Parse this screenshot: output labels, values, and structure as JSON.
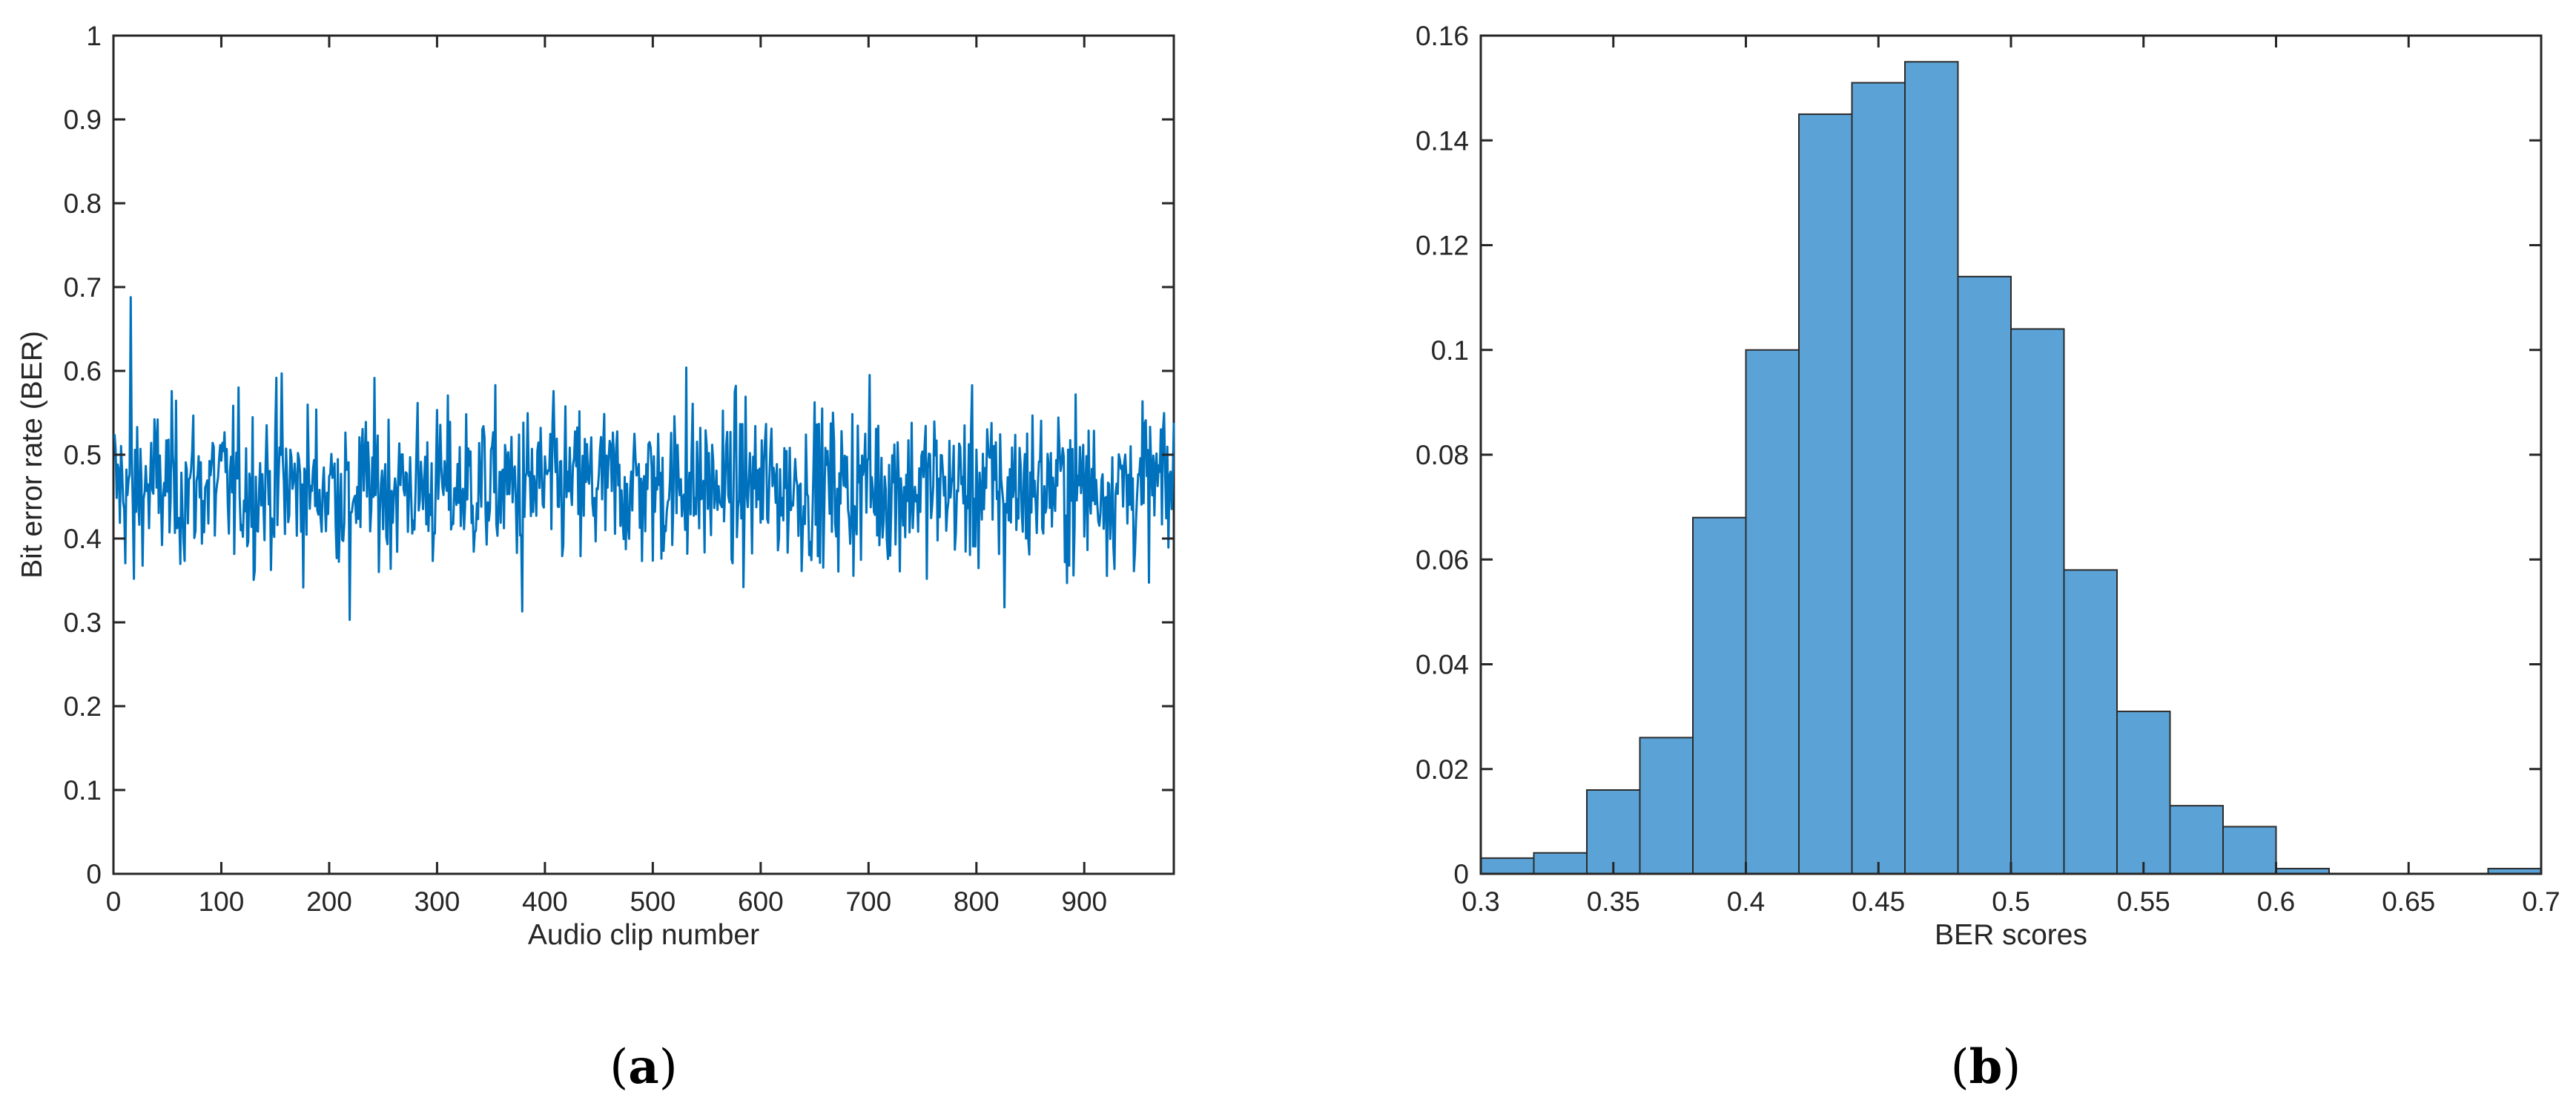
{
  "colors": {
    "line": "#0072BD",
    "bar_fill": "#5BA3D6",
    "bar_edge": "#2b2b2b",
    "axis": "#262626"
  },
  "chart_data": [
    {
      "panel_label": "a",
      "type": "line",
      "title": "",
      "xlabel": "Audio clip number",
      "ylabel": "Bit error rate (BER)",
      "xlim": [
        0,
        983
      ],
      "ylim": [
        0,
        1
      ],
      "xticks": [
        0,
        100,
        200,
        300,
        400,
        500,
        600,
        700,
        800,
        900
      ],
      "yticks": [
        0,
        0.1,
        0.2,
        0.3,
        0.4,
        0.5,
        0.6,
        0.7,
        0.8,
        0.9,
        1
      ],
      "ytick_labels": [
        "0",
        "0.1",
        "0.2",
        "0.3",
        "0.4",
        "0.5",
        "0.6",
        "0.7",
        "0.8",
        "0.9",
        "1"
      ],
      "grid": false,
      "series": [
        {
          "n_points": 983,
          "mean": 0.462,
          "std": 0.047,
          "min": 0.303,
          "max": 0.688,
          "notable_points": [
            {
              "x": 15,
              "y": 0.688
            },
            {
              "x": 18,
              "y": 0.352
            },
            {
              "x": 218,
              "y": 0.303
            },
            {
              "x": 378,
              "y": 0.313
            },
            {
              "x": 530,
              "y": 0.604
            },
            {
              "x": 155,
              "y": 0.597
            },
            {
              "x": 825,
              "y": 0.318
            },
            {
              "x": 700,
              "y": 0.595
            }
          ]
        }
      ]
    },
    {
      "panel_label": "b",
      "type": "bar",
      "title": "",
      "xlabel": "BER scores",
      "ylabel": "",
      "xlim": [
        0.3,
        0.7
      ],
      "ylim": [
        0,
        0.16
      ],
      "xticks": [
        0.3,
        0.35,
        0.4,
        0.45,
        0.5,
        0.55,
        0.6,
        0.65,
        0.7
      ],
      "xtick_labels": [
        "0.3",
        "0.35",
        "0.4",
        "0.45",
        "0.5",
        "0.55",
        "0.6",
        "0.65",
        "0.7"
      ],
      "yticks": [
        0,
        0.02,
        0.04,
        0.06,
        0.08,
        0.1,
        0.12,
        0.14,
        0.16
      ],
      "ytick_labels": [
        "0",
        "0.02",
        "0.04",
        "0.06",
        "0.08",
        "0.1",
        "0.12",
        "0.14",
        "0.16"
      ],
      "grid": false,
      "bin_width": 0.02,
      "bin_edges_start": [
        0.3,
        0.32,
        0.34,
        0.36,
        0.38,
        0.4,
        0.42,
        0.44,
        0.46,
        0.48,
        0.5,
        0.52,
        0.54,
        0.56,
        0.58,
        0.6,
        0.62,
        0.64,
        0.66,
        0.68
      ],
      "values": [
        0.003,
        0.004,
        0.016,
        0.026,
        0.068,
        0.1,
        0.145,
        0.151,
        0.155,
        0.114,
        0.104,
        0.058,
        0.031,
        0.013,
        0.009,
        0.001,
        0.0,
        0.0,
        0.0,
        0.001
      ]
    }
  ]
}
